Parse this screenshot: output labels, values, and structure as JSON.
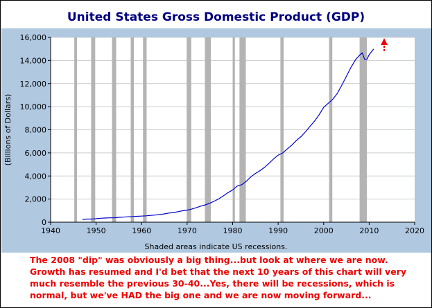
{
  "chart_data": {
    "type": "line",
    "title": "United States Gross Domestic Product (GDP)",
    "xlabel": "",
    "ylabel": "(Billions of Dollars)",
    "xlim": [
      1940,
      2020
    ],
    "ylim": [
      0,
      16000
    ],
    "x_ticks": [
      1940,
      1950,
      1960,
      1970,
      1980,
      1990,
      2000,
      2010,
      2020
    ],
    "y_ticks": [
      0,
      2000,
      4000,
      6000,
      8000,
      10000,
      12000,
      14000,
      16000
    ],
    "x_tick_labels": [
      "1940",
      "1950",
      "1960",
      "1970",
      "1980",
      "1990",
      "2000",
      "2010",
      "2020"
    ],
    "y_tick_labels": [
      "0",
      "2,000",
      "4,000",
      "6,000",
      "8,000",
      "10,000",
      "12,000",
      "14,000",
      "16,000"
    ],
    "grid": "horizontal",
    "series": [
      {
        "color": "#0000cc",
        "x": [
          1947,
          1948,
          1949,
          1950,
          1951,
          1952,
          1953,
          1954,
          1955,
          1956,
          1957,
          1958,
          1959,
          1960,
          1961,
          1962,
          1963,
          1964,
          1965,
          1966,
          1967,
          1968,
          1969,
          1970,
          1971,
          1972,
          1973,
          1974,
          1975,
          1976,
          1977,
          1978,
          1979,
          1980,
          1981,
          1982,
          1983,
          1984,
          1985,
          1986,
          1987,
          1988,
          1989,
          1990,
          1991,
          1992,
          1993,
          1994,
          1995,
          1996,
          1997,
          1998,
          1999,
          2000,
          2001,
          2002,
          2003,
          2004,
          2005,
          2006,
          2007,
          2008,
          2008.5,
          2009,
          2009.5,
          2010,
          2011
        ],
        "y": [
          240,
          270,
          270,
          300,
          340,
          360,
          380,
          380,
          420,
          440,
          470,
          480,
          510,
          530,
          550,
          590,
          620,
          660,
          720,
          790,
          830,
          910,
          990,
          1040,
          1130,
          1250,
          1390,
          1500,
          1640,
          1830,
          2030,
          2290,
          2560,
          2790,
          3130,
          3250,
          3540,
          3930,
          4220,
          4460,
          4740,
          5100,
          5480,
          5800,
          5990,
          6340,
          6670,
          7080,
          7400,
          7820,
          8300,
          8750,
          9300,
          9950,
          10290,
          10640,
          11140,
          11870,
          12640,
          13400,
          14060,
          14500,
          14650,
          14100,
          14100,
          14500,
          15000
        ]
      }
    ],
    "recessions": [
      [
        1945.2,
        1945.8
      ],
      [
        1948.9,
        1949.8
      ],
      [
        1953.5,
        1954.4
      ],
      [
        1957.6,
        1958.3
      ],
      [
        1960.3,
        1961.1
      ],
      [
        1969.9,
        1970.9
      ],
      [
        1973.9,
        1975.2
      ],
      [
        1980.0,
        1980.5
      ],
      [
        1981.5,
        1982.9
      ],
      [
        1990.5,
        1991.2
      ],
      [
        2001.2,
        2001.9
      ],
      [
        2007.9,
        2009.5
      ]
    ],
    "annotations": [
      {
        "type": "arrow",
        "color": "#ee0000",
        "x": 2013.3,
        "y_from": 14800,
        "y_to": 15750
      }
    ]
  },
  "caption": "Shaded areas indicate US recessions.",
  "commentary": {
    "color": "#ee0000",
    "lines": [
      "The 2008 \"dip\" was obviously a big thing...but look at where we are now.",
      "Growth has resumed and I'd bet that the next 10 years of this chart will very",
      "much resemble the previous 30-40...Yes, there will be recessions, which is",
      "normal, but we've HAD the big one and we are now moving forward..."
    ]
  },
  "colors": {
    "title": "#000080",
    "panel": "#b0c8e0",
    "plot_background": "#ffffff",
    "recession_band": "#b4b4b4",
    "grid": "#cccccc"
  }
}
